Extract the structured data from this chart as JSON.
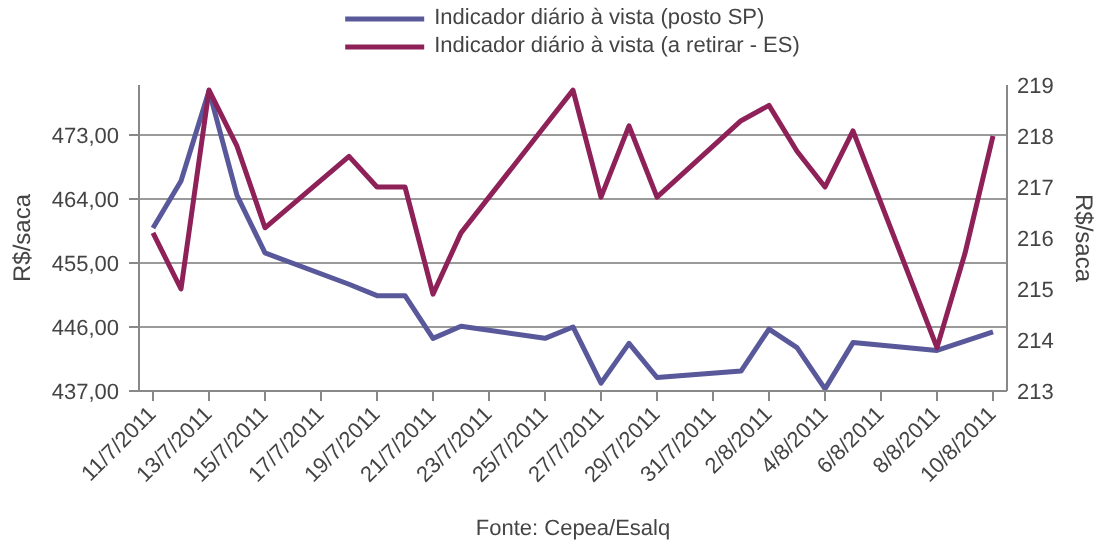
{
  "chart_data": {
    "type": "line",
    "ylabel": "R$/saca",
    "y2label": "R$/saca",
    "annotations": [
      "Fonte: Cepea/Esalq"
    ],
    "legend": "top",
    "grid": "y",
    "marker": "none",
    "line_style": "solid",
    "xlim": [
      "2011-07-10T12:00",
      "2011-08-10T12:00"
    ],
    "xticks": [
      {
        "value": "2011-07-11",
        "label": "11/7/2011"
      },
      {
        "value": "2011-07-13",
        "label": "13/7/2011"
      },
      {
        "value": "2011-07-15",
        "label": "15/7/2011"
      },
      {
        "value": "2011-07-17",
        "label": "17/7/2011"
      },
      {
        "value": "2011-07-19",
        "label": "19/7/2011"
      },
      {
        "value": "2011-07-21",
        "label": "21/7/2011"
      },
      {
        "value": "2011-07-23",
        "label": "23/7/2011"
      },
      {
        "value": "2011-07-25",
        "label": "25/7/2011"
      },
      {
        "value": "2011-07-27",
        "label": "27/7/2011"
      },
      {
        "value": "2011-07-29",
        "label": "29/7/2011"
      },
      {
        "value": "2011-07-31",
        "label": "31/7/2011"
      },
      {
        "value": "2011-08-02",
        "label": "2/8/2011"
      },
      {
        "value": "2011-08-04",
        "label": "4/8/2011"
      },
      {
        "value": "2011-08-06",
        "label": "6/8/2011"
      },
      {
        "value": "2011-08-08",
        "label": "8/8/2011"
      },
      {
        "value": "2011-08-10",
        "label": "10/8/2011"
      }
    ],
    "ylim": [
      437,
      480
    ],
    "yticks": [
      {
        "value": 437,
        "label": "437,00"
      },
      {
        "value": 446,
        "label": "446,00"
      },
      {
        "value": 455,
        "label": "455,00"
      },
      {
        "value": 464,
        "label": "464,00"
      },
      {
        "value": 473,
        "label": "473,00"
      }
    ],
    "y2lim": [
      213,
      219
    ],
    "y2ticks": [
      213,
      214,
      215,
      216,
      217,
      218,
      219
    ],
    "series": [
      {
        "name": "Indicador diário à vista (posto SP)",
        "color": "#58589a",
        "x": [
          "2011-07-11",
          "2011-07-12",
          "2011-07-13",
          "2011-07-14",
          "2011-07-15",
          "2011-07-18",
          "2011-07-19",
          "2011-07-20",
          "2011-07-21",
          "2011-07-22",
          "2011-07-25",
          "2011-07-26",
          "2011-07-27",
          "2011-07-28",
          "2011-07-29",
          "2011-08-01",
          "2011-08-02",
          "2011-08-03",
          "2011-08-04",
          "2011-08-05",
          "2011-08-08",
          "2011-08-10"
        ],
        "values": [
          459.9,
          466.5,
          479.2,
          464.5,
          456.4,
          452.0,
          450.4,
          450.4,
          444.4,
          446.1,
          444.4,
          446.0,
          438.1,
          443.7,
          438.9,
          439.8,
          445.7,
          443.1,
          437.3,
          443.8,
          442.7,
          445.3
        ]
      },
      {
        "name": "Indicador diário à vista (a retirar - ES)",
        "color": "#8e2157",
        "axis": "y2",
        "x": [
          "2011-07-11",
          "2011-07-12",
          "2011-07-13",
          "2011-07-14",
          "2011-07-15",
          "2011-07-18",
          "2011-07-19",
          "2011-07-20",
          "2011-07-21",
          "2011-07-22",
          "2011-07-25",
          "2011-07-26",
          "2011-07-27",
          "2011-07-28",
          "2011-07-29",
          "2011-08-01",
          "2011-08-02",
          "2011-08-03",
          "2011-08-04",
          "2011-08-05",
          "2011-08-08",
          "2011-08-09",
          "2011-08-10"
        ],
        "values": [
          216.1,
          215.0,
          218.9,
          217.8,
          216.2,
          217.6,
          217.0,
          217.0,
          214.9,
          216.1,
          218.2,
          218.9,
          216.8,
          218.2,
          216.8,
          218.3,
          218.6,
          217.7,
          217.0,
          218.1,
          213.85,
          215.7,
          218.0
        ]
      }
    ]
  }
}
